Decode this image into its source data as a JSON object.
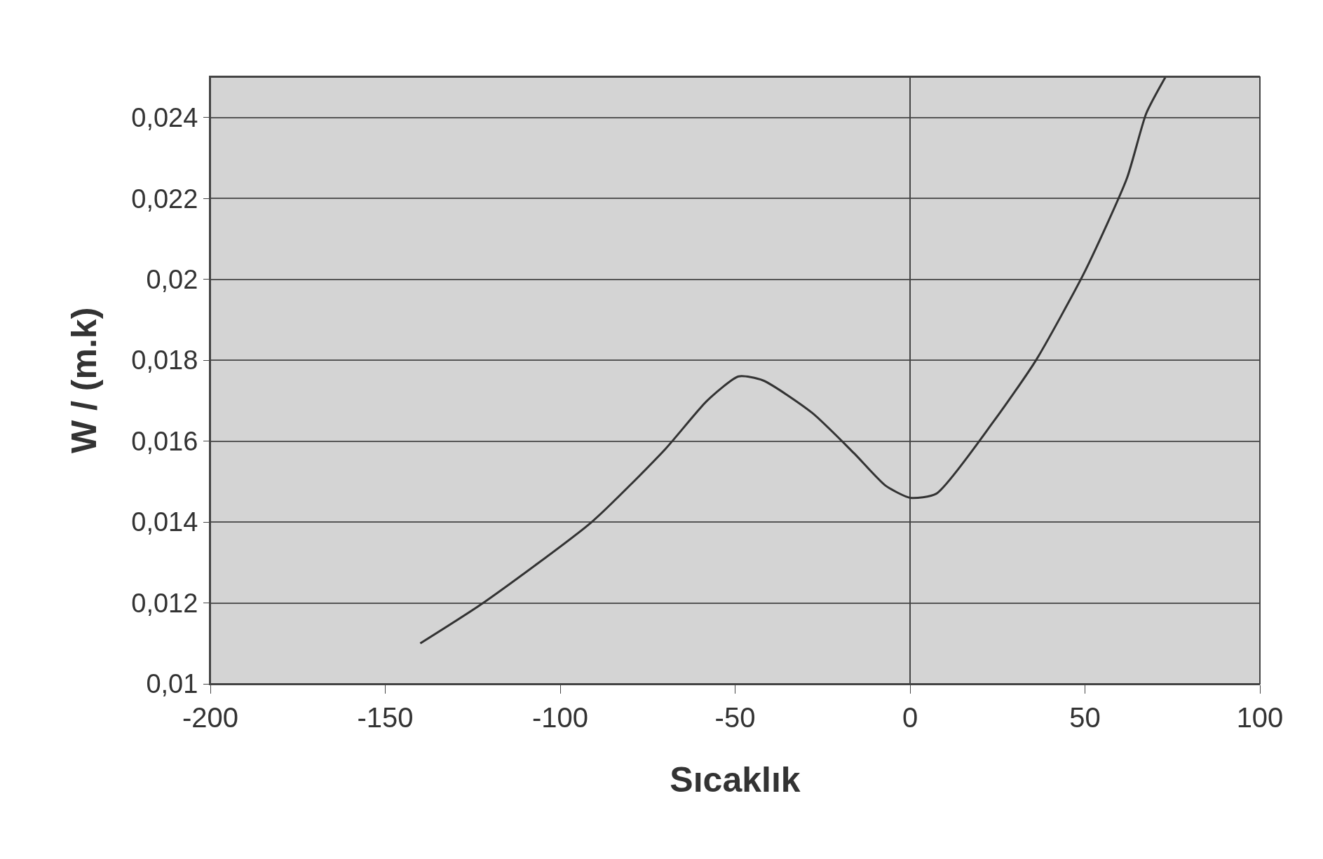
{
  "chart_data": {
    "type": "line",
    "xlabel": "Sıcaklık",
    "ylabel": "W / (m.k)",
    "x": [
      -140,
      -122,
      -91,
      -70,
      -58,
      -49,
      -42,
      -28,
      -16,
      -7,
      0,
      7.5,
      24,
      36,
      50,
      62,
      67.5,
      73
    ],
    "values": [
      0.011,
      0.012,
      0.014,
      0.0158,
      0.017,
      0.0176,
      0.0175,
      0.0167,
      0.0157,
      0.0149,
      0.0146,
      0.0147,
      0.0165,
      0.018,
      0.0202,
      0.0225,
      0.0241,
      0.025
    ],
    "color": "#333333",
    "xlim": [
      -200,
      100
    ],
    "xticks": [
      -200,
      -150,
      -100,
      -50,
      0,
      50,
      100
    ],
    "ylim": [
      0.01,
      0.025
    ],
    "yticks": [
      {
        "value": 0.01,
        "label": "0,01"
      },
      {
        "value": 0.012,
        "label": "0,012"
      },
      {
        "value": 0.014,
        "label": "0,014"
      },
      {
        "value": 0.016,
        "label": "0,016"
      },
      {
        "value": 0.018,
        "label": "0,018"
      },
      {
        "value": 0.02,
        "label": "0,02"
      },
      {
        "value": 0.022,
        "label": "0,022"
      },
      {
        "value": 0.024,
        "label": "0,024"
      }
    ],
    "grid": "y",
    "legend": false,
    "marker": "none",
    "line_style": "solid"
  }
}
